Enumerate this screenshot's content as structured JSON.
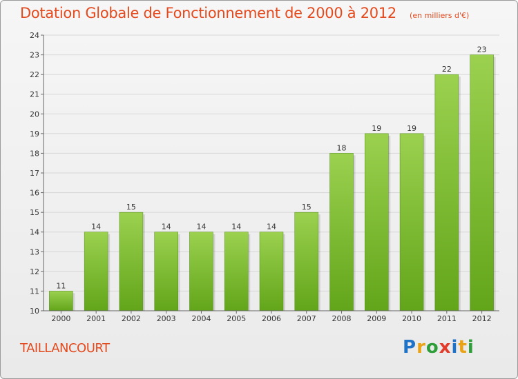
{
  "header": {
    "title": "Dotation Globale de Fonctionnement de 2000 à 2012",
    "subtitle": "(en milliers d'€)"
  },
  "footer": {
    "city": "TAILLANCOURT",
    "logo_text": "Proxiti",
    "logo_letters": [
      {
        "char": "P",
        "color": "#1e73c8"
      },
      {
        "char": "r",
        "color": "#e8a317"
      },
      {
        "char": "o",
        "color": "#2e9e3a"
      },
      {
        "char": "x",
        "color": "#e33b2b"
      },
      {
        "char": "i",
        "color": "#1e73c8"
      },
      {
        "char": "t",
        "color": "#e8a317"
      },
      {
        "char": "i",
        "color": "#2e9e3a"
      }
    ]
  },
  "chart_data": {
    "type": "bar",
    "categories": [
      "2000",
      "2001",
      "2002",
      "2003",
      "2004",
      "2005",
      "2006",
      "2007",
      "2008",
      "2009",
      "2010",
      "2011",
      "2012"
    ],
    "values": [
      11,
      14,
      15,
      14,
      14,
      14,
      14,
      15,
      18,
      19,
      19,
      22,
      23
    ],
    "data_labels": [
      "11",
      "14",
      "15",
      "14",
      "14",
      "14",
      "14",
      "15",
      "18",
      "19",
      "19",
      "22",
      "23"
    ],
    "ylim": [
      10,
      24
    ],
    "yticks": [
      10,
      11,
      12,
      13,
      14,
      15,
      16,
      17,
      18,
      19,
      20,
      21,
      22,
      23,
      24
    ],
    "grid": true,
    "bar_color_top": "#9bd14f",
    "bar_color_bottom": "#62a51a",
    "text_color": "#333333",
    "grid_color": "#d6d6d6"
  }
}
